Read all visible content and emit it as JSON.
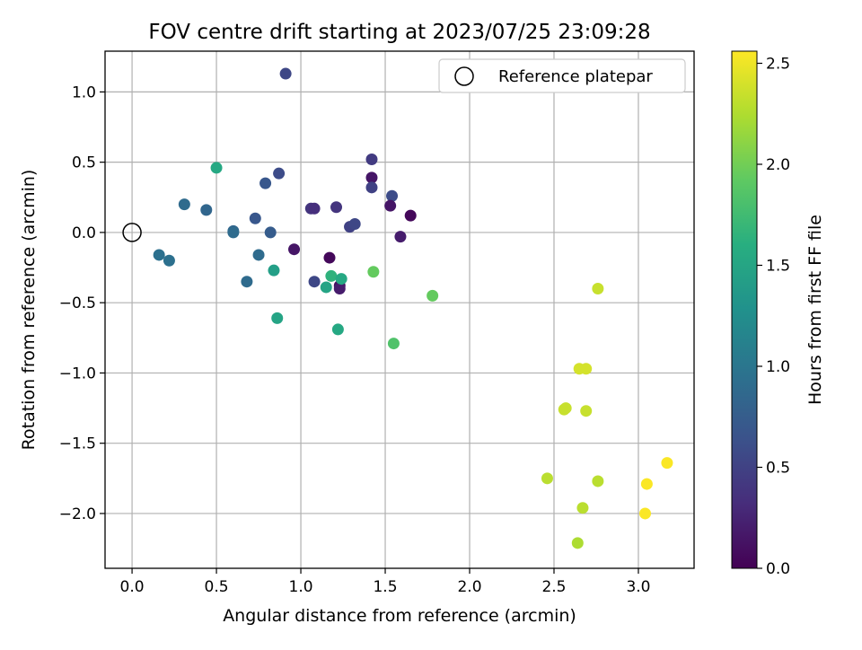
{
  "chart_data": {
    "type": "scatter",
    "title": "FOV centre drift starting at 2023/07/25 23:09:28",
    "xlabel": "Angular distance from reference (arcmin)",
    "ylabel": "Rotation from reference (arcmin)",
    "xlim": [
      -0.16,
      3.33
    ],
    "ylim": [
      -2.39,
      1.29
    ],
    "xticks": [
      "0.0",
      "0.5",
      "1.0",
      "1.5",
      "2.0",
      "2.5",
      "3.0"
    ],
    "yticks": [
      "1.0",
      "0.5",
      "0.0",
      "−0.5",
      "−1.0",
      "−1.5",
      "−2.0"
    ],
    "grid": true,
    "legend": {
      "position": "top-right",
      "entries": [
        "Reference platepar"
      ]
    },
    "reference": {
      "x": 0.0,
      "y": 0.0
    },
    "colorbar": {
      "label": "Hours from first FF file",
      "range": [
        0.0,
        2.56
      ],
      "ticks": [
        "0.0",
        "0.5",
        "1.0",
        "1.5",
        "2.0",
        "2.5"
      ],
      "colormap": "viridis"
    },
    "points": [
      {
        "x": 0.91,
        "y": 1.13,
        "c": 0.55
      },
      {
        "x": 0.5,
        "y": 0.46,
        "c": 1.55
      },
      {
        "x": 0.87,
        "y": 0.42,
        "c": 0.6
      },
      {
        "x": 0.79,
        "y": 0.35,
        "c": 0.7
      },
      {
        "x": 1.42,
        "y": 0.52,
        "c": 0.45
      },
      {
        "x": 1.42,
        "y": 0.39,
        "c": 0.15
      },
      {
        "x": 1.42,
        "y": 0.32,
        "c": 0.5
      },
      {
        "x": 1.54,
        "y": 0.26,
        "c": 0.6
      },
      {
        "x": 1.53,
        "y": 0.19,
        "c": 0.15
      },
      {
        "x": 1.65,
        "y": 0.12,
        "c": 0.05
      },
      {
        "x": 0.31,
        "y": 0.2,
        "c": 0.9
      },
      {
        "x": 0.44,
        "y": 0.16,
        "c": 0.85
      },
      {
        "x": 0.6,
        "y": 0.01,
        "c": 0.85
      },
      {
        "x": 0.6,
        "y": 0.0,
        "c": 0.9
      },
      {
        "x": 0.73,
        "y": 0.1,
        "c": 0.7
      },
      {
        "x": 0.82,
        "y": 0.0,
        "c": 0.75
      },
      {
        "x": 1.06,
        "y": 0.17,
        "c": 0.4
      },
      {
        "x": 1.08,
        "y": 0.17,
        "c": 0.35
      },
      {
        "x": 1.21,
        "y": 0.18,
        "c": 0.4
      },
      {
        "x": 1.29,
        "y": 0.04,
        "c": 0.5
      },
      {
        "x": 1.32,
        "y": 0.06,
        "c": 0.55
      },
      {
        "x": 1.59,
        "y": -0.03,
        "c": 0.2
      },
      {
        "x": 0.96,
        "y": -0.12,
        "c": 0.15
      },
      {
        "x": 0.16,
        "y": -0.16,
        "c": 0.95
      },
      {
        "x": 0.22,
        "y": -0.2,
        "c": 0.95
      },
      {
        "x": 0.75,
        "y": -0.16,
        "c": 0.9
      },
      {
        "x": 0.68,
        "y": -0.35,
        "c": 0.9
      },
      {
        "x": 0.84,
        "y": -0.27,
        "c": 1.45
      },
      {
        "x": 1.08,
        "y": -0.35,
        "c": 0.55
      },
      {
        "x": 1.17,
        "y": -0.18,
        "c": 0.05
      },
      {
        "x": 1.23,
        "y": -0.38,
        "c": 0.1
      },
      {
        "x": 1.23,
        "y": -0.4,
        "c": 0.2
      },
      {
        "x": 1.18,
        "y": -0.31,
        "c": 1.65
      },
      {
        "x": 1.15,
        "y": -0.39,
        "c": 1.5
      },
      {
        "x": 1.24,
        "y": -0.33,
        "c": 1.55
      },
      {
        "x": 1.43,
        "y": -0.28,
        "c": 1.95
      },
      {
        "x": 1.78,
        "y": -0.45,
        "c": 1.95
      },
      {
        "x": 0.86,
        "y": -0.61,
        "c": 1.5
      },
      {
        "x": 1.22,
        "y": -0.69,
        "c": 1.55
      },
      {
        "x": 1.55,
        "y": -0.79,
        "c": 1.85
      },
      {
        "x": 2.76,
        "y": -0.4,
        "c": 2.35
      },
      {
        "x": 2.65,
        "y": -0.97,
        "c": 2.4
      },
      {
        "x": 2.69,
        "y": -0.97,
        "c": 2.4
      },
      {
        "x": 2.56,
        "y": -1.26,
        "c": 2.35
      },
      {
        "x": 2.57,
        "y": -1.25,
        "c": 2.35
      },
      {
        "x": 2.69,
        "y": -1.27,
        "c": 2.35
      },
      {
        "x": 2.46,
        "y": -1.75,
        "c": 2.3
      },
      {
        "x": 2.76,
        "y": -1.77,
        "c": 2.3
      },
      {
        "x": 2.67,
        "y": -1.96,
        "c": 2.3
      },
      {
        "x": 2.64,
        "y": -2.21,
        "c": 2.25
      },
      {
        "x": 3.05,
        "y": -1.79,
        "c": 2.55
      },
      {
        "x": 3.04,
        "y": -2.0,
        "c": 2.55
      },
      {
        "x": 3.17,
        "y": -1.64,
        "c": 2.55
      }
    ]
  }
}
